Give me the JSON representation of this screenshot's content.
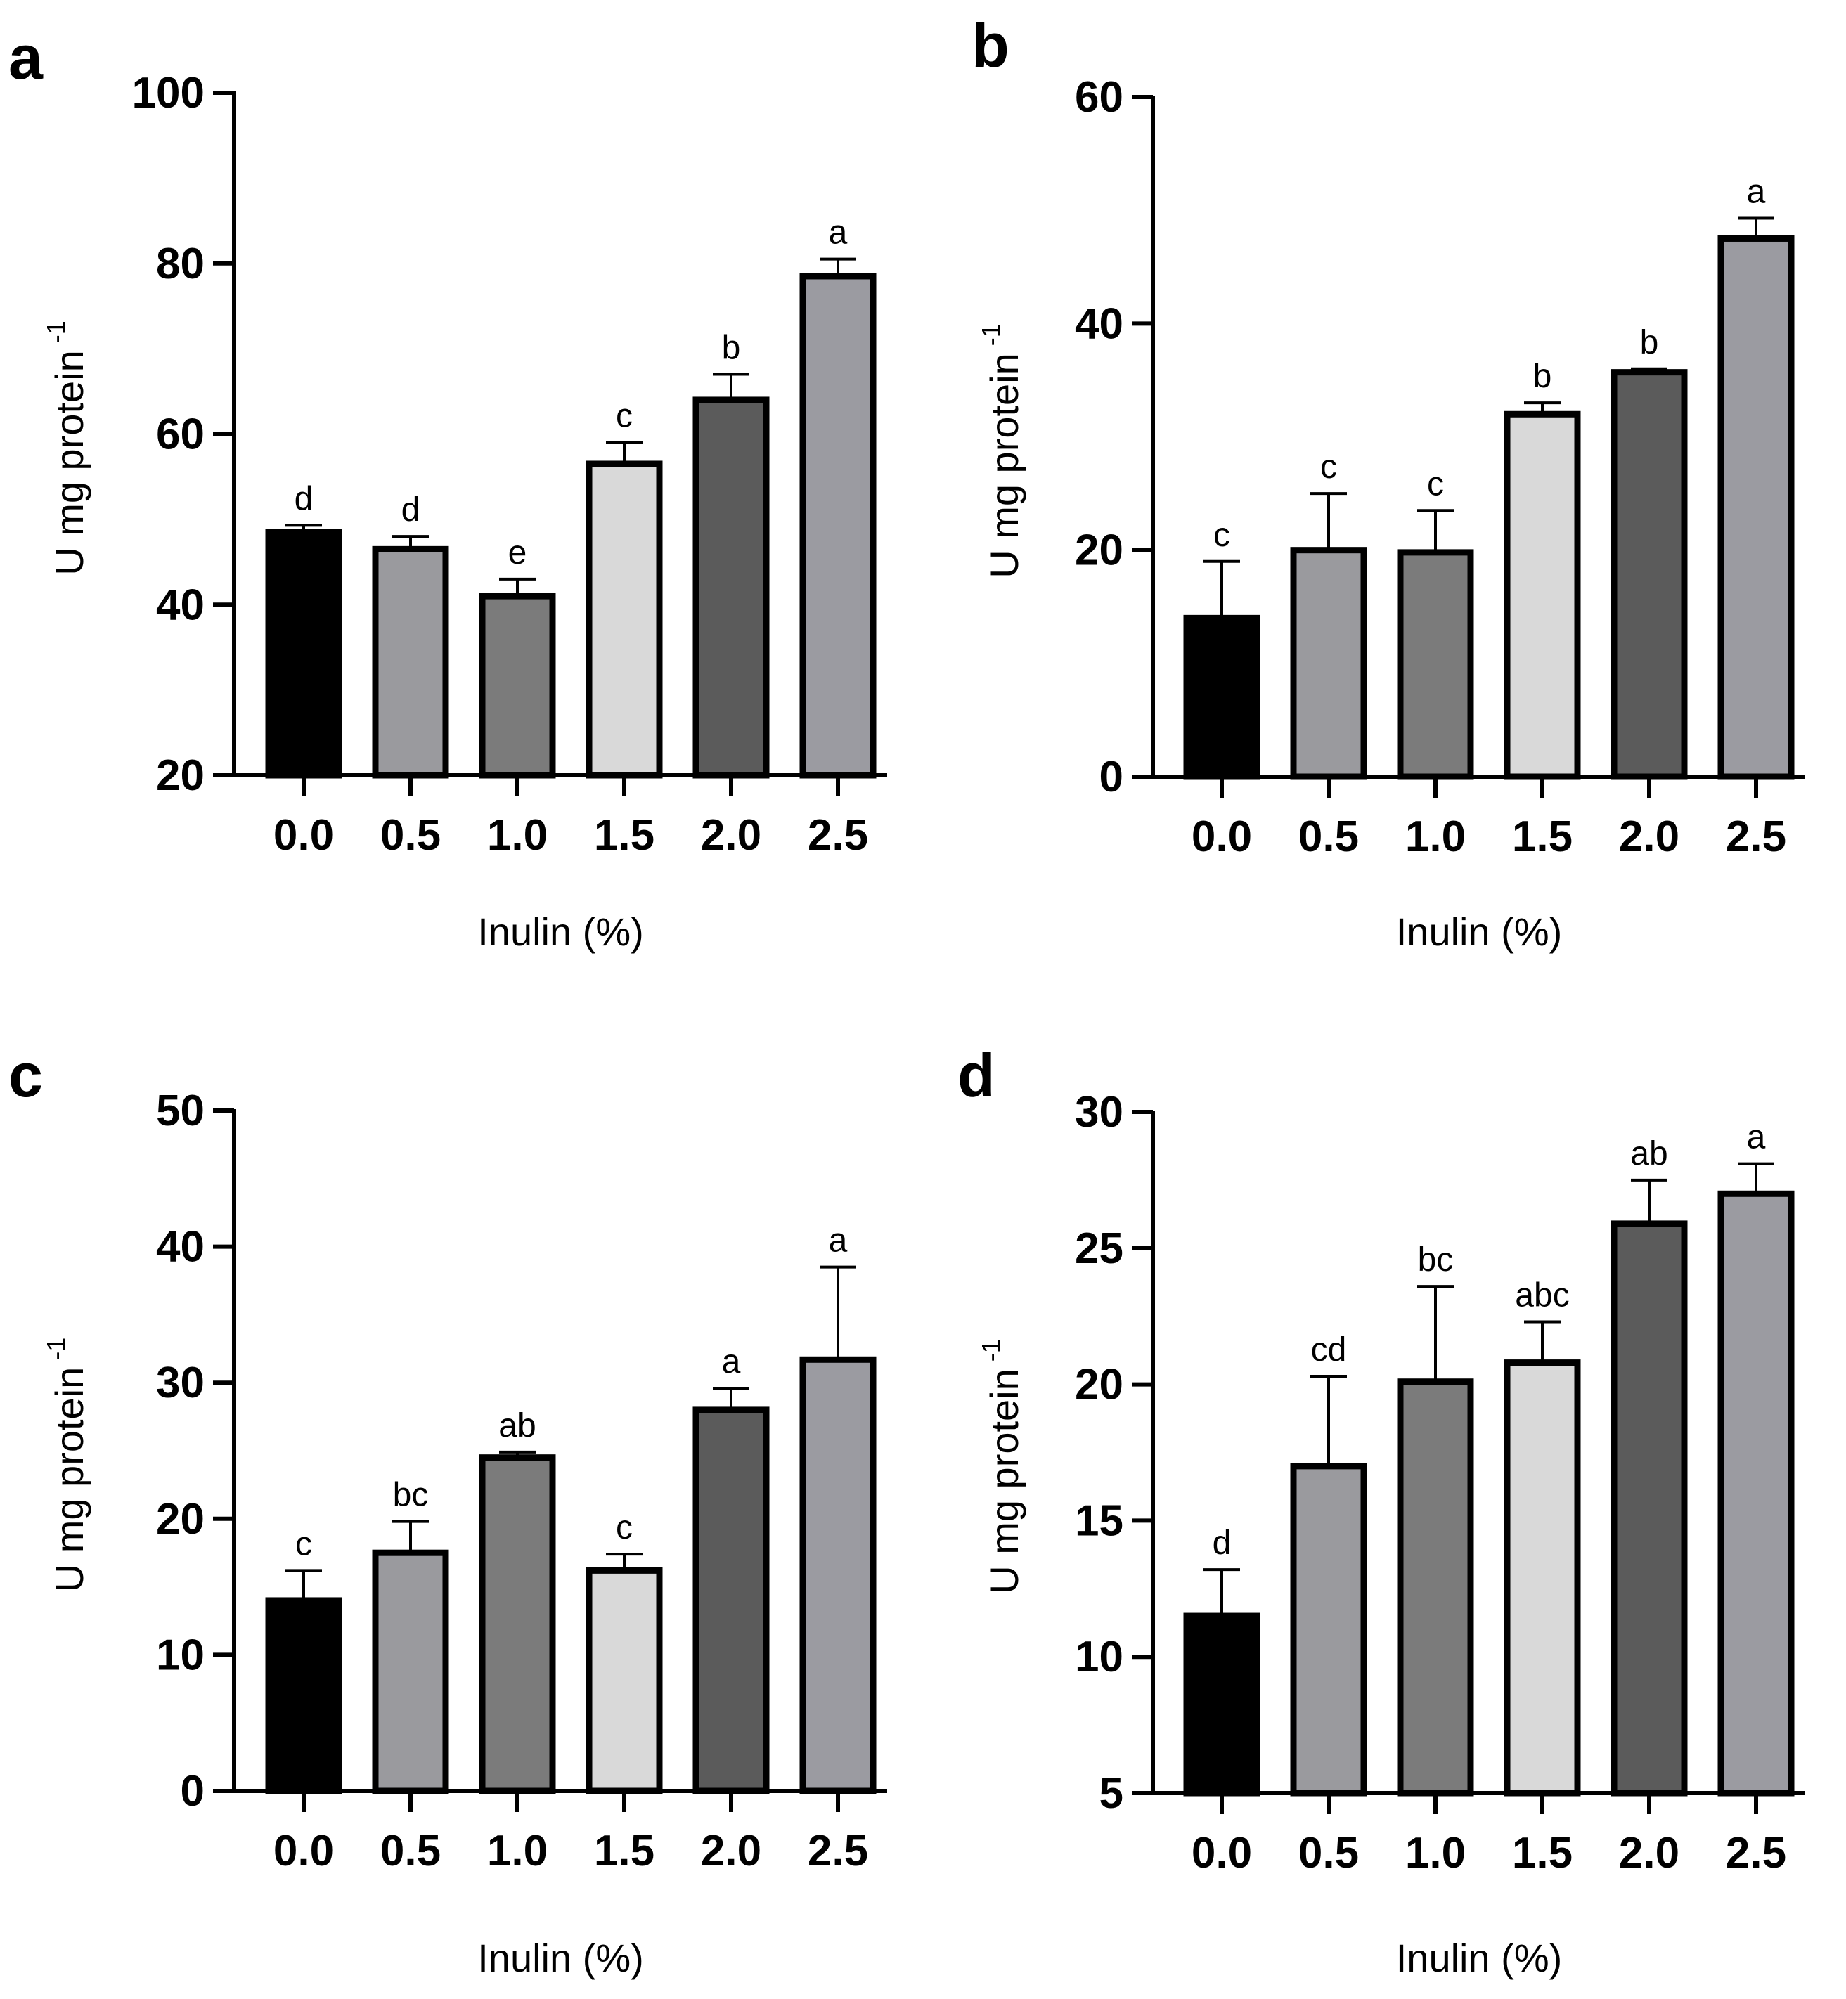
{
  "chart_data": [
    {
      "panel": "a",
      "type": "bar",
      "xlabel": "Inulin (%)",
      "ylabel": "U mg protein",
      "ylabel_sup": "-1",
      "categories": [
        "0.0",
        "0.5",
        "1.0",
        "1.5",
        "2.0",
        "2.5"
      ],
      "values": [
        48.5,
        46.5,
        41.0,
        56.5,
        64.0,
        78.5
      ],
      "errors": [
        0.8,
        1.5,
        2.0,
        2.5,
        3.0,
        2.0
      ],
      "significance": [
        "d",
        "d",
        "e",
        "c",
        "b",
        "a"
      ],
      "ylim": [
        20,
        100
      ],
      "yticks": [
        20,
        40,
        60,
        80,
        100
      ]
    },
    {
      "panel": "b",
      "type": "bar",
      "xlabel": "Inulin (%)",
      "ylabel": "U mg protein",
      "ylabel_sup": "-1",
      "categories": [
        "0.0",
        "0.5",
        "1.0",
        "1.5",
        "2.0",
        "2.5"
      ],
      "values": [
        14.0,
        20.0,
        19.8,
        32.0,
        35.7,
        47.5
      ],
      "errors": [
        5.0,
        5.0,
        3.7,
        1.0,
        0.3,
        1.8
      ],
      "significance": [
        "c",
        "c",
        "c",
        "b",
        "b",
        "a"
      ],
      "ylim": [
        0,
        60
      ],
      "yticks": [
        0,
        20,
        40,
        60
      ]
    },
    {
      "panel": "c",
      "type": "bar",
      "xlabel": "Inulin (%)",
      "ylabel": "U mg protein",
      "ylabel_sup": "-1",
      "categories": [
        "0.0",
        "0.5",
        "1.0",
        "1.5",
        "2.0",
        "2.5"
      ],
      "values": [
        14.0,
        17.5,
        24.5,
        16.2,
        28.0,
        31.7
      ],
      "errors": [
        2.2,
        2.3,
        0.4,
        1.2,
        1.6,
        6.8
      ],
      "significance": [
        "c",
        "bc",
        "ab",
        "c",
        "a",
        "a"
      ],
      "ylim": [
        0,
        50
      ],
      "yticks": [
        0,
        10,
        20,
        30,
        40,
        50
      ]
    },
    {
      "panel": "d",
      "type": "bar",
      "xlabel": "Inulin (%)",
      "ylabel": "U mg protein",
      "ylabel_sup": "-1",
      "categories": [
        "0.0",
        "0.5",
        "1.0",
        "1.5",
        "2.0",
        "2.5"
      ],
      "values": [
        11.5,
        17.0,
        20.1,
        20.8,
        25.9,
        27.0
      ],
      "errors": [
        1.7,
        3.3,
        3.5,
        1.5,
        1.6,
        1.1
      ],
      "significance": [
        "d",
        "cd",
        "bc",
        "abc",
        "ab",
        "a"
      ],
      "ylim": [
        5,
        30
      ],
      "yticks": [
        5,
        10,
        15,
        20,
        25,
        30
      ]
    }
  ],
  "bar_colors": [
    "#000000",
    "#9a9a9e",
    "#7b7b7b",
    "#d9d9d9",
    "#5b5b5b",
    "#9b9ba1"
  ],
  "axis_color": "#000000"
}
